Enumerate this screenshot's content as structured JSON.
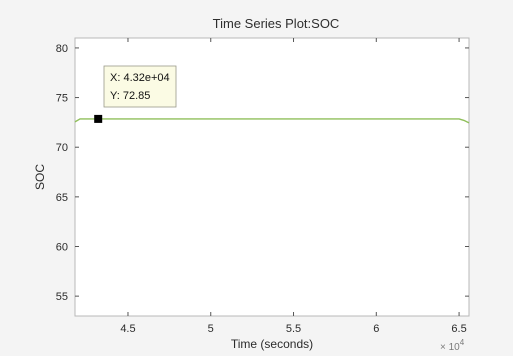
{
  "chart_data": {
    "type": "line",
    "title": "Time Series Plot:SOC",
    "xlabel": "Time (seconds)",
    "ylabel": "SOC",
    "x_exponent_label": "× 10",
    "x_exponent_power": "4",
    "xlim": [
      41800,
      65600
    ],
    "ylim": [
      53,
      81
    ],
    "xticks": [
      45000,
      50000,
      55000,
      60000,
      65000
    ],
    "xtick_labels": [
      "4.5",
      "5",
      "5.5",
      "6",
      "6.5"
    ],
    "yticks": [
      55,
      60,
      65,
      70,
      75,
      80
    ],
    "ytick_labels": [
      "55",
      "60",
      "65",
      "70",
      "75",
      "80"
    ],
    "grid": false,
    "series": [
      {
        "color": "#8fbf5a",
        "x": [
          41800,
          42100,
          43200,
          50000,
          55000,
          60000,
          65000,
          65300,
          65600
        ],
        "y": [
          72.55,
          72.85,
          72.85,
          72.85,
          72.85,
          72.85,
          72.85,
          72.7,
          72.45
        ]
      }
    ],
    "datatip": {
      "x": 43200,
      "y": 72.85,
      "x_text": "X: 4.32e+04",
      "y_text": "Y: 72.85"
    }
  }
}
